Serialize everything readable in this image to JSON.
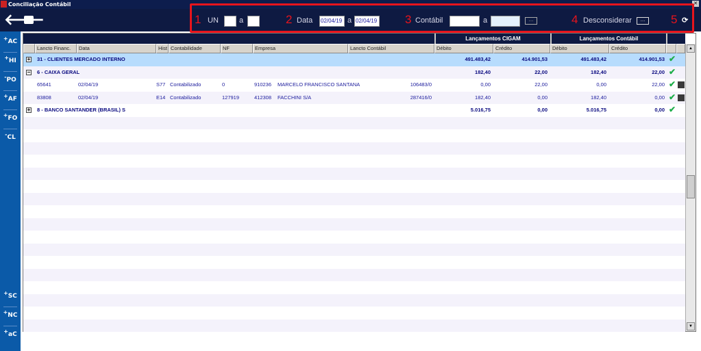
{
  "window": {
    "title": "Conciliação Contábil",
    "logo": "CIG"
  },
  "toolbar": {
    "filters": [
      {
        "number": "1",
        "label": "UN",
        "from": "",
        "sep": "a",
        "to": ""
      },
      {
        "number": "2",
        "label": "Data",
        "from": "02/04/19",
        "sep": "a",
        "to": "02/04/19"
      },
      {
        "number": "3",
        "label": "Contábil",
        "from": "",
        "sep": "a",
        "to": "",
        "lookup": "..."
      },
      {
        "number": "4",
        "label": "Desconsiderar",
        "lookup": "..."
      },
      {
        "number": "5"
      }
    ],
    "highlight_color": "#e8141c"
  },
  "sidebar": {
    "items": [
      {
        "sign": "+",
        "code": "AC"
      },
      {
        "sign": "+",
        "code": "HI"
      },
      {
        "sign": "-",
        "code": "PO"
      },
      {
        "sign": "+",
        "code": "AF"
      },
      {
        "sign": "+",
        "code": "FO"
      },
      {
        "sign": "-",
        "code": "CL"
      },
      {
        "sign": "+",
        "code": "SC"
      },
      {
        "sign": "+",
        "code": "NC"
      },
      {
        "sign": "+",
        "code": "aC"
      }
    ]
  },
  "grid": {
    "groups": [
      "Lançamentos CIGAM",
      "Lançamentos Contábil"
    ],
    "columns": [
      "Lancto Financ.",
      "Data",
      "Hist",
      "Contabilidade",
      "NF",
      "Empresa",
      "Lancto Contábil",
      "Débito",
      "Crédito",
      "Débito",
      "Crédito"
    ],
    "rows": [
      {
        "type": "group",
        "expand": "+",
        "label": "31 - CLIENTES MERCADO INTERNO",
        "cigam_debito": "491.483,42",
        "cigam_credito": "414.901,53",
        "cont_debito": "491.483,42",
        "cont_credito": "414.901,53",
        "ok": true,
        "selected": true
      },
      {
        "type": "group",
        "expand": "-",
        "label": "6 - CAIXA GERAL",
        "cigam_debito": "182,40",
        "cigam_credito": "22,00",
        "cont_debito": "182,40",
        "cont_credito": "22,00",
        "ok": true
      },
      {
        "type": "detail",
        "lancto": "65641",
        "data": "02/04/19",
        "hist": "S77",
        "contab": "Contabilizado",
        "nf": "0",
        "emp_cod": "910236",
        "empresa": "MARCELO FRANCISCO SANTANA",
        "lancto_contabil": "106483/0",
        "cigam_debito": "0,00",
        "cigam_credito": "22,00",
        "cont_debito": "0,00",
        "cont_credito": "22,00",
        "ok": true
      },
      {
        "type": "detail",
        "lancto": "83808",
        "data": "02/04/19",
        "hist": "E14",
        "contab": "Contabilizado",
        "nf": "127919",
        "emp_cod": "412308",
        "empresa": "FACCHINI S/A",
        "lancto_contabil": "287416/0",
        "cigam_debito": "182,40",
        "cigam_credito": "0,00",
        "cont_debito": "182,40",
        "cont_credito": "0,00",
        "ok": true
      },
      {
        "type": "group",
        "expand": "+",
        "label": "8 - BANCO SANTANDER (BRASIL) S",
        "cigam_debito": "5.016,75",
        "cigam_credito": "0,00",
        "cont_debito": "5.016,75",
        "cont_credito": "0,00",
        "ok": true
      }
    ]
  }
}
